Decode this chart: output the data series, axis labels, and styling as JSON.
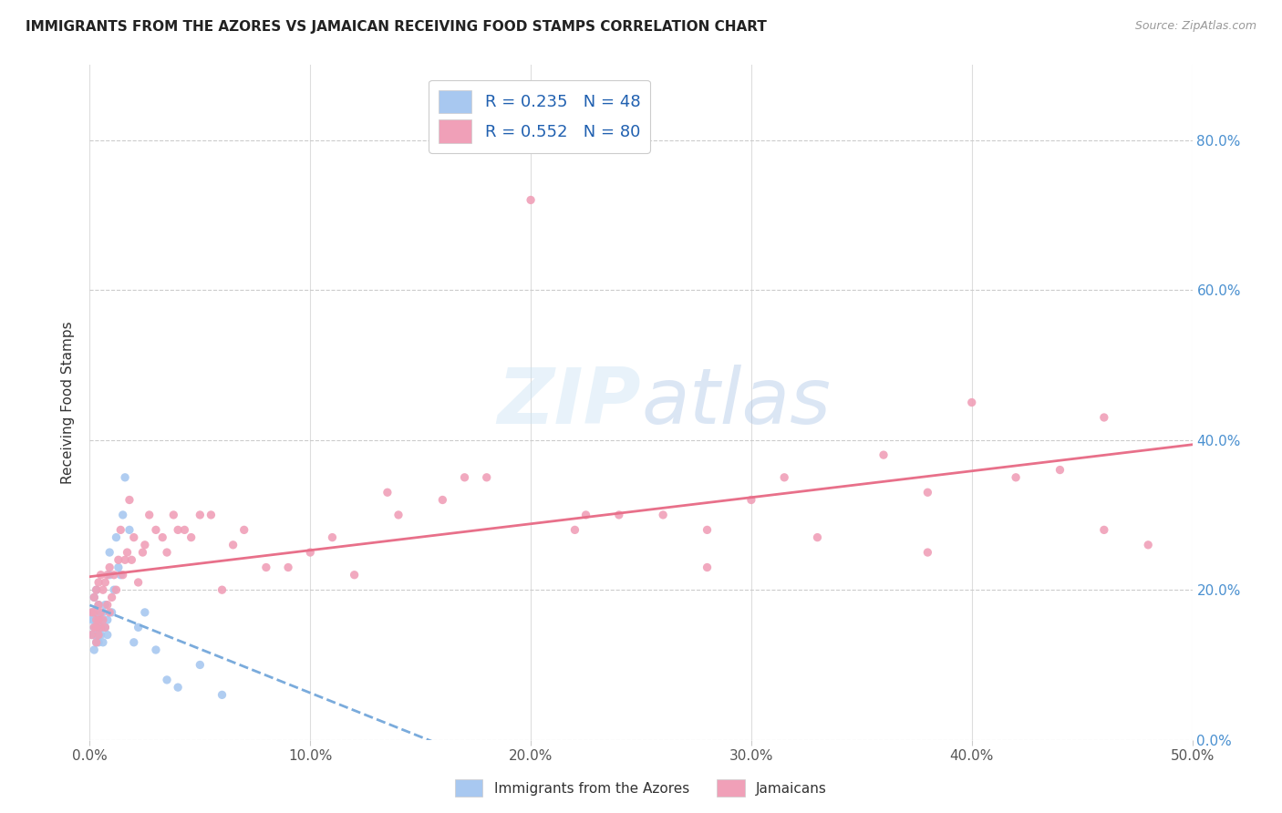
{
  "title": "IMMIGRANTS FROM THE AZORES VS JAMAICAN RECEIVING FOOD STAMPS CORRELATION CHART",
  "source": "Source: ZipAtlas.com",
  "ylabel": "Receiving Food Stamps",
  "xmin": 0.0,
  "xmax": 0.5,
  "ymin": 0.0,
  "ymax": 0.9,
  "azores_R": 0.235,
  "azores_N": 48,
  "jamaican_R": 0.552,
  "jamaican_N": 80,
  "azores_color": "#a8c8f0",
  "jamaican_color": "#f0a0b8",
  "azores_line_color": "#7aabdc",
  "jamaican_line_color": "#e8708a",
  "legend_label_1": "Immigrants from the Azores",
  "legend_label_2": "Jamaicans",
  "ytick_labels": [
    "0.0%",
    "20.0%",
    "40.0%",
    "60.0%",
    "80.0%"
  ],
  "ytick_vals": [
    0.0,
    0.2,
    0.4,
    0.6,
    0.8
  ],
  "xtick_labels": [
    "0.0%",
    "10.0%",
    "20.0%",
    "30.0%",
    "40.0%",
    "50.0%"
  ],
  "xtick_vals": [
    0.0,
    0.1,
    0.2,
    0.3,
    0.4,
    0.5
  ],
  "azores_x": [
    0.001,
    0.001,
    0.001,
    0.002,
    0.002,
    0.002,
    0.002,
    0.002,
    0.002,
    0.003,
    0.003,
    0.003,
    0.003,
    0.003,
    0.003,
    0.004,
    0.004,
    0.004,
    0.004,
    0.004,
    0.005,
    0.005,
    0.005,
    0.006,
    0.006,
    0.006,
    0.007,
    0.007,
    0.008,
    0.008,
    0.009,
    0.009,
    0.01,
    0.011,
    0.012,
    0.013,
    0.014,
    0.015,
    0.016,
    0.018,
    0.02,
    0.022,
    0.025,
    0.03,
    0.035,
    0.04,
    0.05,
    0.06
  ],
  "azores_y": [
    0.14,
    0.16,
    0.17,
    0.12,
    0.14,
    0.15,
    0.16,
    0.17,
    0.19,
    0.13,
    0.14,
    0.15,
    0.16,
    0.17,
    0.2,
    0.13,
    0.14,
    0.15,
    0.16,
    0.18,
    0.14,
    0.15,
    0.16,
    0.13,
    0.15,
    0.17,
    0.15,
    0.18,
    0.14,
    0.16,
    0.22,
    0.25,
    0.17,
    0.2,
    0.27,
    0.23,
    0.22,
    0.3,
    0.35,
    0.28,
    0.13,
    0.15,
    0.17,
    0.12,
    0.08,
    0.07,
    0.1,
    0.06
  ],
  "jamaican_x": [
    0.001,
    0.001,
    0.002,
    0.002,
    0.002,
    0.003,
    0.003,
    0.003,
    0.003,
    0.004,
    0.004,
    0.004,
    0.004,
    0.005,
    0.005,
    0.005,
    0.006,
    0.006,
    0.007,
    0.007,
    0.008,
    0.008,
    0.009,
    0.009,
    0.01,
    0.011,
    0.012,
    0.013,
    0.014,
    0.015,
    0.016,
    0.017,
    0.018,
    0.019,
    0.02,
    0.022,
    0.024,
    0.025,
    0.027,
    0.03,
    0.033,
    0.035,
    0.038,
    0.04,
    0.043,
    0.046,
    0.05,
    0.055,
    0.06,
    0.065,
    0.07,
    0.08,
    0.09,
    0.1,
    0.11,
    0.12,
    0.14,
    0.16,
    0.18,
    0.2,
    0.22,
    0.24,
    0.26,
    0.28,
    0.3,
    0.33,
    0.36,
    0.38,
    0.4,
    0.42,
    0.44,
    0.46,
    0.48,
    0.315,
    0.135,
    0.17,
    0.225,
    0.28,
    0.38,
    0.46
  ],
  "jamaican_y": [
    0.14,
    0.17,
    0.15,
    0.17,
    0.19,
    0.13,
    0.15,
    0.16,
    0.2,
    0.14,
    0.16,
    0.18,
    0.21,
    0.15,
    0.17,
    0.22,
    0.16,
    0.2,
    0.15,
    0.21,
    0.18,
    0.22,
    0.17,
    0.23,
    0.19,
    0.22,
    0.2,
    0.24,
    0.28,
    0.22,
    0.24,
    0.25,
    0.32,
    0.24,
    0.27,
    0.21,
    0.25,
    0.26,
    0.3,
    0.28,
    0.27,
    0.25,
    0.3,
    0.28,
    0.28,
    0.27,
    0.3,
    0.3,
    0.2,
    0.26,
    0.28,
    0.23,
    0.23,
    0.25,
    0.27,
    0.22,
    0.3,
    0.32,
    0.35,
    0.72,
    0.28,
    0.3,
    0.3,
    0.28,
    0.32,
    0.27,
    0.38,
    0.25,
    0.45,
    0.35,
    0.36,
    0.28,
    0.26,
    0.35,
    0.33,
    0.35,
    0.3,
    0.23,
    0.33,
    0.43
  ]
}
